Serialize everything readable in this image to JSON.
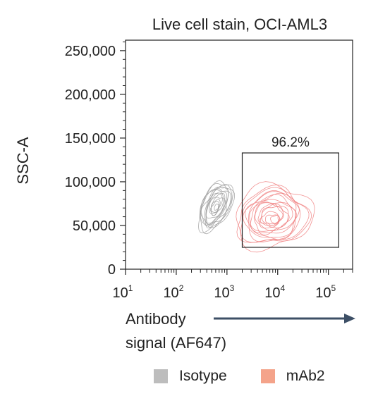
{
  "chart_data": {
    "type": "scatter",
    "subtype": "contour density plot",
    "title": "Live cell stain, OCI-AML3",
    "xlabel": "Antibody signal (AF647)",
    "xlabel_lines": [
      "Antibody",
      "signal (AF647)"
    ],
    "ylabel": "SSC-A",
    "x_scale": "log",
    "xlim": [
      10,
      300000
    ],
    "ylim": [
      0,
      262000
    ],
    "x_ticks": [
      {
        "value": 10,
        "base": "10",
        "exp": "1"
      },
      {
        "value": 100,
        "base": "10",
        "exp": "2"
      },
      {
        "value": 1000,
        "base": "10",
        "exp": "3"
      },
      {
        "value": 10000,
        "base": "10",
        "exp": "4"
      },
      {
        "value": 100000,
        "base": "10",
        "exp": "5"
      }
    ],
    "y_ticks": [
      {
        "value": 0,
        "label": "0"
      },
      {
        "value": 50000,
        "label": "50,000"
      },
      {
        "value": 100000,
        "label": "100,000"
      },
      {
        "value": 150000,
        "label": "150,000"
      },
      {
        "value": 200000,
        "label": "200,000"
      },
      {
        "value": 250000,
        "label": "250,000"
      }
    ],
    "gate": {
      "x_min": 2000,
      "x_max": 160000,
      "y_min": 25000,
      "y_max": 133000,
      "label": "96.2%"
    },
    "series": [
      {
        "name": "Isotype",
        "color": "#9e9e9e",
        "center": {
          "x": 600,
          "y": 72000
        },
        "spread_log_x": 0.32,
        "spread_y": 30000,
        "tilt": -0.55,
        "levels": 14
      },
      {
        "name": "mAb2",
        "color": "#f08080",
        "center": {
          "x": 8000,
          "y": 60000
        },
        "spread_log_x": 0.72,
        "spread_y": 34000,
        "tilt": -0.2,
        "levels": 16
      }
    ],
    "legend": {
      "position": "bottom",
      "entries": [
        {
          "label": "Isotype",
          "color": "#bdbdbd"
        },
        {
          "label": "mAb2",
          "color": "#f4a38a"
        }
      ]
    },
    "arrow_color": "#3d4f66",
    "grid": false
  }
}
